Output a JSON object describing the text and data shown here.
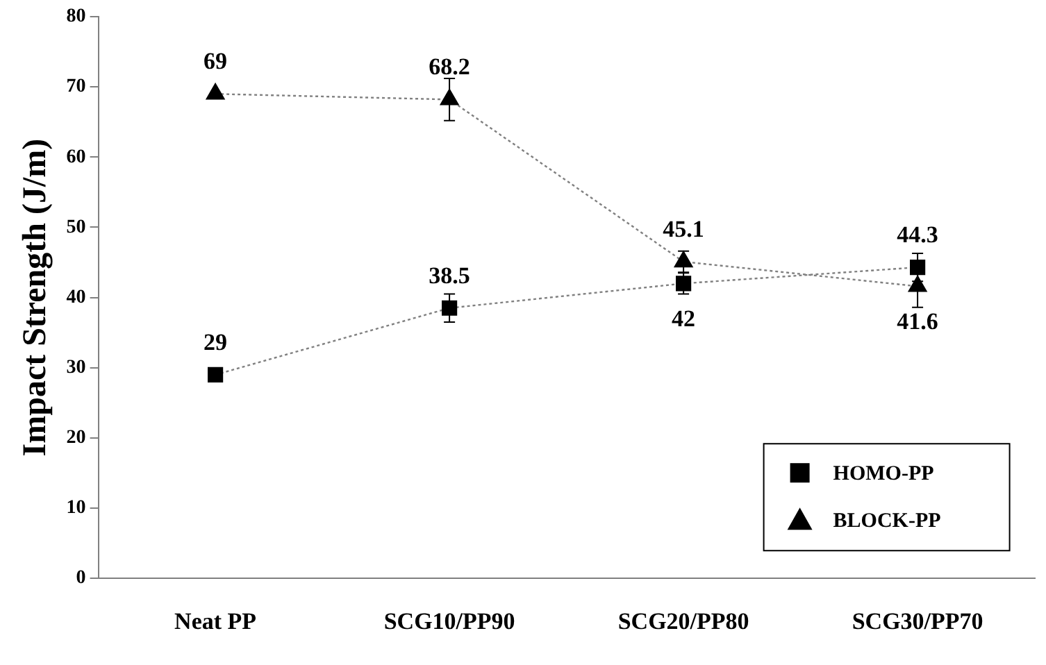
{
  "chart_data": {
    "type": "line",
    "ylabel": "Impact Strength (J/m)",
    "categories": [
      "Neat PP",
      "SCG10/PP90",
      "SCG20/PP80",
      "SCG30/PP70"
    ],
    "series": [
      {
        "name": "HOMO-PP",
        "color": "#000000",
        "marker": "square",
        "values": [
          29,
          38.5,
          42,
          44.3
        ],
        "errors": [
          null,
          2,
          1.5,
          2
        ]
      },
      {
        "name": "BLOCK-PP",
        "color": "#000000",
        "marker": "triangle",
        "values": [
          69,
          68.2,
          45.1,
          41.6
        ],
        "errors": [
          null,
          3,
          1.5,
          3
        ]
      }
    ],
    "ylim": [
      0,
      80
    ],
    "yticks": [
      0,
      10,
      20,
      30,
      40,
      50,
      60,
      70,
      80
    ],
    "grid": false,
    "legend": "bottom right",
    "data_labels": true,
    "line_style": "dotted"
  }
}
